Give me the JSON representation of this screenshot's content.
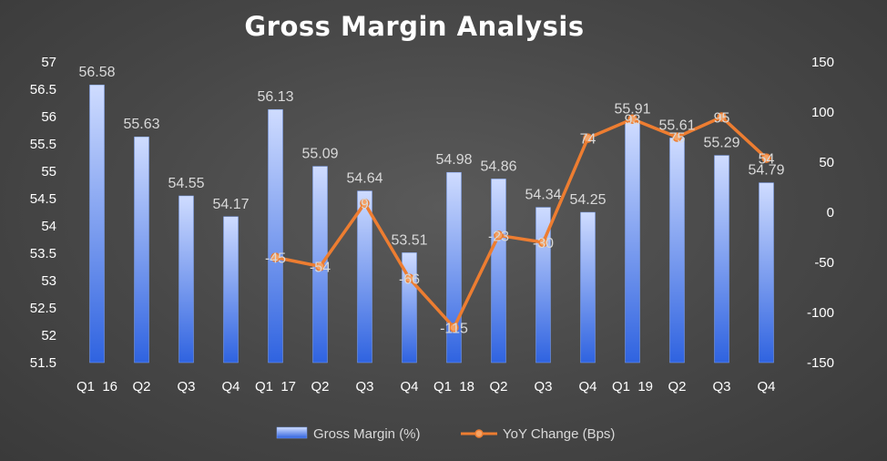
{
  "chart_data": {
    "type": "bar",
    "title": "Gross Margin Analysis",
    "categories": [
      "Q1  16",
      "Q2",
      "Q3",
      "Q4",
      "Q1  17",
      "Q2",
      "Q3",
      "Q4",
      "Q1  18",
      "Q2",
      "Q3",
      "Q4",
      "Q1  19",
      "Q2",
      "Q3",
      "Q4"
    ],
    "series": [
      {
        "name": "Gross Margin (%)",
        "type": "bar",
        "axis": "left",
        "values": [
          56.58,
          55.63,
          54.55,
          54.17,
          56.13,
          55.09,
          54.64,
          53.51,
          54.98,
          54.86,
          54.34,
          54.25,
          55.91,
          55.61,
          55.29,
          54.79
        ],
        "color": "#4f7fe8"
      },
      {
        "name": "YoY Change (Bps)",
        "type": "line",
        "axis": "right",
        "values": [
          null,
          null,
          null,
          null,
          -45,
          -54,
          9,
          -66,
          -115,
          -23,
          -30,
          74,
          93,
          75,
          95,
          54
        ],
        "color": "#ed7d31"
      }
    ],
    "y_left": {
      "min": 51.5,
      "max": 57,
      "step": 0.5,
      "ticks": [
        "51.5",
        "52",
        "52.5",
        "53",
        "53.5",
        "54",
        "54.5",
        "55",
        "55.5",
        "56",
        "56.5",
        "57"
      ]
    },
    "y_right": {
      "min": -150,
      "max": 150,
      "step": 50,
      "ticks": [
        "-150",
        "-100",
        "-50",
        "0",
        "50",
        "100",
        "150"
      ]
    },
    "legend": "bottom",
    "grid": false
  }
}
